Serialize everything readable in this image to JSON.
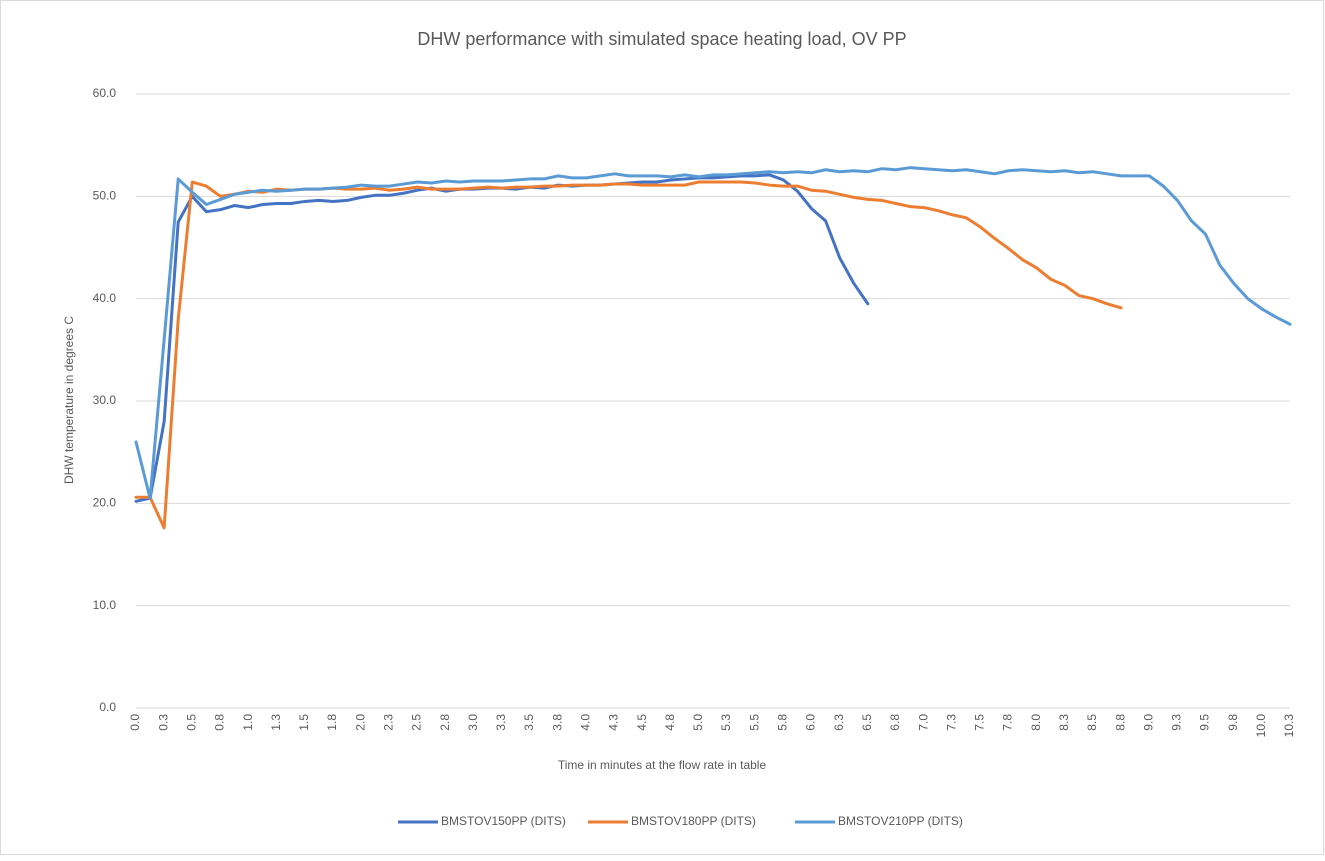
{
  "chart_data": {
    "type": "line",
    "title": "DHW performance with simulated space heating load, OV PP",
    "x_label": "Time in minutes at the flow rate in  table",
    "y_label": "DHW temperature in degrees C",
    "categories": [
      "0.0",
      null,
      "0.3",
      null,
      "0.5",
      null,
      "0.8",
      null,
      "1.0",
      null,
      "1.3",
      null,
      "1.5",
      null,
      "1.8",
      null,
      "2.0",
      null,
      "2.3",
      null,
      "2.5",
      null,
      "2.8",
      null,
      "3.0",
      null,
      "3.3",
      null,
      "3.5",
      null,
      "3.8",
      null,
      "4.0",
      null,
      "4.3",
      null,
      "4.5",
      null,
      "4.8",
      null,
      "5.0",
      null,
      "5.3",
      null,
      "5.5",
      null,
      "5.8",
      null,
      "6.0",
      null,
      "6.3",
      null,
      "6.5",
      null,
      "6.8",
      null,
      "7.0",
      null,
      "7.3",
      null,
      "7.5",
      null,
      "7.8",
      null,
      "8.0",
      null,
      "8.3",
      null,
      "8.5",
      null,
      "8.8",
      null,
      "9.0",
      null,
      "9.3",
      null,
      "9.5",
      null,
      "9.8",
      null,
      "10.0",
      null,
      "10.3"
    ],
    "series": [
      {
        "name": "BMSTOV150PP (DITS)",
        "color": "#4472c4",
        "values": [
          20.2,
          20.5,
          28.0,
          47.5,
          50.0,
          48.5,
          48.7,
          49.1,
          48.9,
          49.2,
          49.3,
          49.3,
          49.5,
          49.6,
          49.5,
          49.6,
          49.9,
          50.1,
          50.1,
          50.3,
          50.6,
          50.8,
          50.5,
          50.7,
          50.7,
          50.8,
          50.8,
          50.7,
          50.9,
          50.8,
          51.1,
          51.0,
          51.1,
          51.1,
          51.2,
          51.3,
          51.4,
          51.4,
          51.6,
          51.7,
          51.8,
          51.8,
          51.9,
          52.0,
          52.0,
          52.1,
          51.6,
          50.5,
          48.8,
          47.6,
          44.0,
          41.5,
          39.5,
          null,
          null,
          null,
          null,
          null,
          null,
          null,
          null,
          null,
          null,
          null,
          null,
          null,
          null,
          null,
          null,
          null,
          null,
          null,
          null,
          null,
          null,
          null,
          null,
          null,
          null,
          null,
          null,
          null,
          null
        ]
      },
      {
        "name": "BMSTOV180PP (DITS)",
        "color": "#ed7d31",
        "values": [
          20.6,
          20.6,
          17.6,
          38.0,
          51.4,
          51.0,
          50.0,
          50.2,
          50.5,
          50.4,
          50.7,
          50.6,
          50.7,
          50.7,
          50.8,
          50.7,
          50.7,
          50.8,
          50.6,
          50.7,
          50.9,
          50.7,
          50.7,
          50.7,
          50.8,
          50.9,
          50.8,
          50.9,
          50.9,
          51.0,
          51.0,
          51.1,
          51.1,
          51.1,
          51.2,
          51.2,
          51.1,
          51.1,
          51.1,
          51.1,
          51.4,
          51.4,
          51.4,
          51.4,
          51.3,
          51.1,
          51.0,
          51.0,
          50.6,
          50.5,
          50.2,
          49.9,
          49.7,
          49.6,
          49.3,
          49.0,
          48.9,
          48.6,
          48.2,
          47.9,
          47.0,
          45.9,
          44.9,
          43.8,
          43.0,
          41.9,
          41.3,
          40.3,
          40.0,
          39.5,
          39.1,
          null,
          null,
          null,
          null,
          null,
          null,
          null,
          null,
          null,
          null,
          null,
          null
        ]
      },
      {
        "name": "BMSTOV210PP (DITS)",
        "color": "#5b9bd5",
        "values": [
          26.0,
          20.5,
          36.0,
          51.7,
          50.4,
          49.2,
          49.7,
          50.2,
          50.4,
          50.6,
          50.5,
          50.6,
          50.7,
          50.7,
          50.8,
          50.9,
          51.1,
          51.0,
          51.0,
          51.2,
          51.4,
          51.3,
          51.5,
          51.4,
          51.5,
          51.5,
          51.5,
          51.6,
          51.7,
          51.7,
          52.0,
          51.8,
          51.8,
          52.0,
          52.2,
          52.0,
          52.0,
          52.0,
          51.9,
          52.1,
          51.9,
          52.1,
          52.1,
          52.2,
          52.3,
          52.4,
          52.3,
          52.4,
          52.3,
          52.6,
          52.4,
          52.5,
          52.4,
          52.7,
          52.6,
          52.8,
          52.7,
          52.6,
          52.5,
          52.6,
          52.4,
          52.2,
          52.5,
          52.6,
          52.5,
          52.4,
          52.5,
          52.3,
          52.4,
          52.2,
          52.0,
          52.0,
          52.0,
          51.0,
          49.6,
          47.6,
          46.3,
          43.3,
          41.5,
          40.0,
          39.0,
          38.2,
          37.5
        ]
      }
    ],
    "ylim": [
      0,
      60
    ],
    "yticks": [
      {
        "value": 0,
        "label": "0.0"
      },
      {
        "value": 10,
        "label": "10.0"
      },
      {
        "value": 20,
        "label": "20.0"
      },
      {
        "value": 30,
        "label": "30.0"
      },
      {
        "value": 40,
        "label": "40.0"
      },
      {
        "value": 50,
        "label": "50.0"
      },
      {
        "value": 60,
        "label": "60.0"
      }
    ],
    "grid": true,
    "legend": "bottom"
  }
}
